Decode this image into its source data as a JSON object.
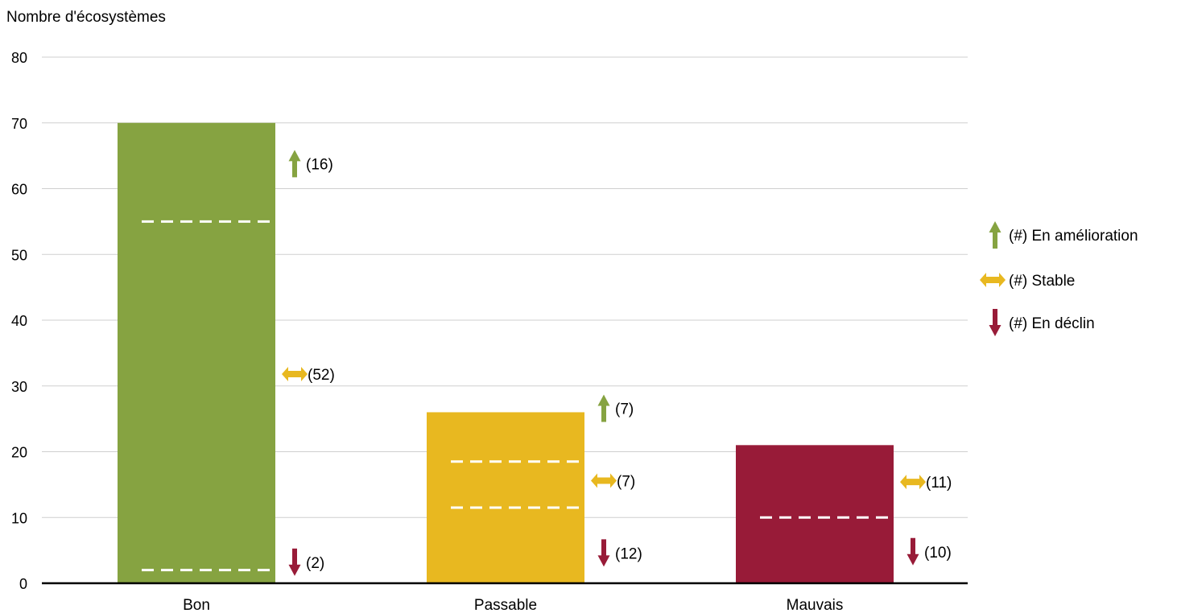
{
  "chart_data": {
    "type": "bar",
    "ylabel": "Nombre d'écosystèmes",
    "xlabel": "",
    "ylim": [
      0,
      80
    ],
    "yticks": [
      0,
      10,
      20,
      30,
      40,
      50,
      60,
      70,
      80
    ],
    "grid": true,
    "legend_position": "right",
    "categories": [
      "Bon",
      "Passable",
      "Mauvais"
    ],
    "values": [
      70,
      26,
      21
    ],
    "bar_colors": [
      "#86a341",
      "#e8b820",
      "#981b38"
    ],
    "segment_dividers": [
      [
        2,
        55
      ],
      [
        11.5,
        18.5
      ],
      [
        10
      ]
    ],
    "trends": [
      {
        "category": "Bon",
        "improving": 16,
        "stable": 52,
        "declining": 2
      },
      {
        "category": "Passable",
        "improving": 7,
        "stable": 7,
        "declining": 12
      },
      {
        "category": "Mauvais",
        "improving": null,
        "stable": 11,
        "declining": 10
      }
    ],
    "trend_labels": [
      {
        "category": "Bon",
        "kind": "improving",
        "y": 63.8,
        "text": "(16)"
      },
      {
        "category": "Bon",
        "kind": "stable",
        "y": 31.8,
        "text": "(52)"
      },
      {
        "category": "Bon",
        "kind": "declining",
        "y": 3.2,
        "text": "(2)"
      },
      {
        "category": "Passable",
        "kind": "improving",
        "y": 26.6,
        "text": "(7)"
      },
      {
        "category": "Passable",
        "kind": "stable",
        "y": 15.6,
        "text": "(7)"
      },
      {
        "category": "Passable",
        "kind": "declining",
        "y": 4.6,
        "text": "(12)"
      },
      {
        "category": "Mauvais",
        "kind": "stable",
        "y": 15.4,
        "text": "(11)"
      },
      {
        "category": "Mauvais",
        "kind": "declining",
        "y": 4.8,
        "text": "(10)"
      }
    ],
    "legend": [
      {
        "kind": "improving",
        "label": "(#) En amélioration",
        "color": "#86a341"
      },
      {
        "kind": "stable",
        "label": "(#) Stable",
        "color": "#e8b820"
      },
      {
        "kind": "declining",
        "label": "(#) En déclin",
        "color": "#981b38"
      }
    ]
  }
}
